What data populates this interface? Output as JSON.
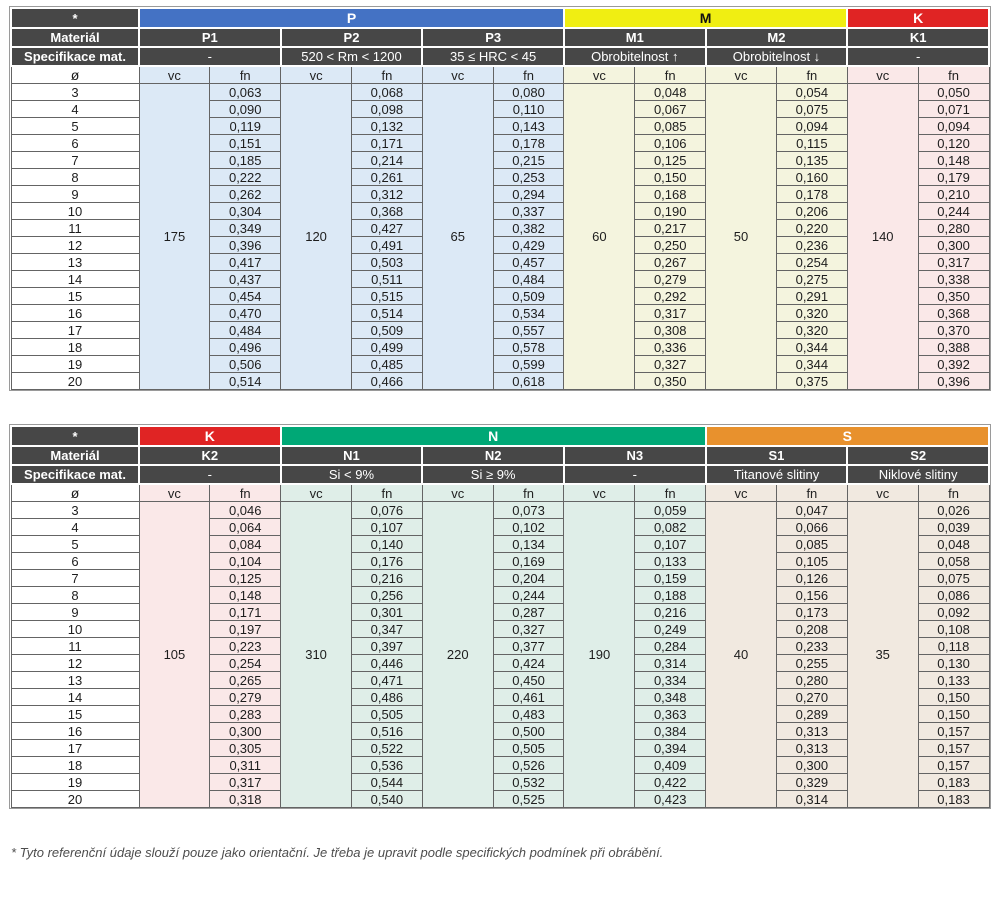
{
  "labels": {
    "corner": "*",
    "material": "Materiál",
    "spec": "Specifikace mat.",
    "diameter": "ø",
    "vc": "vc",
    "fn": "fn"
  },
  "diameters": [
    3,
    4,
    5,
    6,
    7,
    8,
    9,
    10,
    11,
    12,
    13,
    14,
    15,
    16,
    17,
    18,
    19,
    20
  ],
  "footnote": "* Tyto referenční údaje slouží pouze jako orientační. Je třeba je upravit podle specifických podmínek při obrábění.",
  "colors": {
    "header_dark": "#474747",
    "grid_line": "#646464",
    "group_P": "#4472c4",
    "group_M": "#f0ee12",
    "group_K": "#e02424",
    "group_N": "#00a876",
    "group_S": "#e8912d"
  },
  "tables": [
    {
      "name": "table-PMK",
      "groups": [
        {
          "id": "P",
          "label": "P",
          "color": "#4472c4",
          "text_color": "#ffffff",
          "tint": "#dce9f6",
          "materials": [
            {
              "id": "P1",
              "spec": "-",
              "vc": "175",
              "fn": [
                "0,063",
                "0,090",
                "0,119",
                "0,151",
                "0,185",
                "0,222",
                "0,262",
                "0,304",
                "0,349",
                "0,396",
                "0,417",
                "0,437",
                "0,454",
                "0,470",
                "0,484",
                "0,496",
                "0,506",
                "0,514"
              ]
            },
            {
              "id": "P2",
              "spec": "520 < Rm < 1200",
              "vc": "120",
              "fn": [
                "0,068",
                "0,098",
                "0,132",
                "0,171",
                "0,214",
                "0,261",
                "0,312",
                "0,368",
                "0,427",
                "0,491",
                "0,503",
                "0,511",
                "0,515",
                "0,514",
                "0,509",
                "0,499",
                "0,485",
                "0,466"
              ]
            },
            {
              "id": "P3",
              "spec": "35 ≤ HRC < 45",
              "vc": "65",
              "fn": [
                "0,080",
                "0,110",
                "0,143",
                "0,178",
                "0,215",
                "0,253",
                "0,294",
                "0,337",
                "0,382",
                "0,429",
                "0,457",
                "0,484",
                "0,509",
                "0,534",
                "0,557",
                "0,578",
                "0,599",
                "0,618"
              ]
            }
          ]
        },
        {
          "id": "M",
          "label": "M",
          "color": "#f0ee12",
          "text_color": "#111111",
          "tint": "#f4f4de",
          "materials": [
            {
              "id": "M1",
              "spec": "Obrobitelnost ↑",
              "vc": "60",
              "fn": [
                "0,048",
                "0,067",
                "0,085",
                "0,106",
                "0,125",
                "0,150",
                "0,168",
                "0,190",
                "0,217",
                "0,250",
                "0,267",
                "0,279",
                "0,292",
                "0,317",
                "0,308",
                "0,336",
                "0,327",
                "0,350"
              ]
            },
            {
              "id": "M2",
              "spec": "Obrobitelnost ↓",
              "vc": "50",
              "fn": [
                "0,054",
                "0,075",
                "0,094",
                "0,115",
                "0,135",
                "0,160",
                "0,178",
                "0,206",
                "0,220",
                "0,236",
                "0,254",
                "0,275",
                "0,291",
                "0,320",
                "0,320",
                "0,344",
                "0,344",
                "0,375"
              ]
            }
          ]
        },
        {
          "id": "K",
          "label": "K",
          "color": "#e02424",
          "text_color": "#ffffff",
          "tint": "#fae8e8",
          "materials": [
            {
              "id": "K1",
              "spec": "-",
              "vc": "140",
              "fn": [
                "0,050",
                "0,071",
                "0,094",
                "0,120",
                "0,148",
                "0,179",
                "0,210",
                "0,244",
                "0,280",
                "0,300",
                "0,317",
                "0,338",
                "0,350",
                "0,368",
                "0,370",
                "0,388",
                "0,392",
                "0,396"
              ]
            }
          ]
        }
      ]
    },
    {
      "name": "table-KNS",
      "groups": [
        {
          "id": "K",
          "label": "K",
          "color": "#e02424",
          "text_color": "#ffffff",
          "tint": "#fae8e8",
          "materials": [
            {
              "id": "K2",
              "spec": "-",
              "vc": "105",
              "fn": [
                "0,046",
                "0,064",
                "0,084",
                "0,104",
                "0,125",
                "0,148",
                "0,171",
                "0,197",
                "0,223",
                "0,254",
                "0,265",
                "0,279",
                "0,283",
                "0,300",
                "0,305",
                "0,311",
                "0,317",
                "0,318"
              ]
            }
          ]
        },
        {
          "id": "N",
          "label": "N",
          "color": "#00a876",
          "text_color": "#ffffff",
          "tint": "#dfeee8",
          "materials": [
            {
              "id": "N1",
              "spec": "Si < 9%",
              "vc": "310",
              "fn": [
                "0,076",
                "0,107",
                "0,140",
                "0,176",
                "0,216",
                "0,256",
                "0,301",
                "0,347",
                "0,397",
                "0,446",
                "0,471",
                "0,486",
                "0,505",
                "0,516",
                "0,522",
                "0,536",
                "0,544",
                "0,540"
              ]
            },
            {
              "id": "N2",
              "spec": "Si ≥ 9%",
              "vc": "220",
              "fn": [
                "0,073",
                "0,102",
                "0,134",
                "0,169",
                "0,204",
                "0,244",
                "0,287",
                "0,327",
                "0,377",
                "0,424",
                "0,450",
                "0,461",
                "0,483",
                "0,500",
                "0,505",
                "0,526",
                "0,532",
                "0,525"
              ]
            },
            {
              "id": "N3",
              "spec": "-",
              "vc": "190",
              "fn": [
                "0,059",
                "0,082",
                "0,107",
                "0,133",
                "0,159",
                "0,188",
                "0,216",
                "0,249",
                "0,284",
                "0,314",
                "0,334",
                "0,348",
                "0,363",
                "0,384",
                "0,394",
                "0,409",
                "0,422",
                "0,423"
              ]
            }
          ]
        },
        {
          "id": "S",
          "label": "S",
          "color": "#e8912d",
          "text_color": "#ffffff",
          "tint": "#f1e9e0",
          "materials": [
            {
              "id": "S1",
              "spec": "Titanové slitiny",
              "vc": "40",
              "fn": [
                "0,047",
                "0,066",
                "0,085",
                "0,105",
                "0,126",
                "0,156",
                "0,173",
                "0,208",
                "0,233",
                "0,255",
                "0,280",
                "0,270",
                "0,289",
                "0,313",
                "0,313",
                "0,300",
                "0,329",
                "0,314"
              ]
            },
            {
              "id": "S2",
              "spec": "Niklové slitiny",
              "vc": "35",
              "fn": [
                "0,026",
                "0,039",
                "0,048",
                "0,058",
                "0,075",
                "0,086",
                "0,092",
                "0,108",
                "0,118",
                "0,130",
                "0,133",
                "0,150",
                "0,150",
                "0,157",
                "0,157",
                "0,157",
                "0,183",
                "0,183"
              ]
            }
          ]
        }
      ]
    }
  ]
}
